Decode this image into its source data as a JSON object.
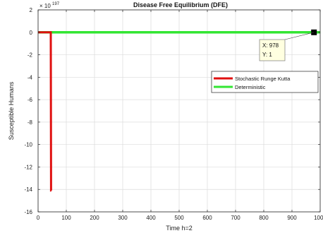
{
  "chart_data": {
    "type": "line",
    "title": "Disease Free Equilibrium (DFE)",
    "xlabel": "Time h=2",
    "ylabel": "Susceptible Humans",
    "exponent_label": "× 10",
    "exponent_power": "197",
    "xlim": [
      0,
      1000
    ],
    "ylim": [
      -16,
      2
    ],
    "xticks": [
      0,
      100,
      200,
      300,
      400,
      500,
      600,
      700,
      800,
      900,
      1000
    ],
    "yticks": [
      2,
      0,
      -2,
      -4,
      -6,
      -8,
      -10,
      -12,
      -14,
      -16
    ],
    "xtick_labels": [
      "0",
      "100",
      "200",
      "300",
      "400",
      "500",
      "600",
      "700",
      "800",
      "900",
      "1000"
    ],
    "ytick_labels": [
      "2",
      "0",
      "-2",
      "-4",
      "-6",
      "-8",
      "-10",
      "-12",
      "-14",
      "-16"
    ],
    "grid": true,
    "legend_position": "right",
    "series": [
      {
        "name": "Stochastic Runge Kutta",
        "color": "#e01010",
        "x": [
          0,
          45,
          46,
          47
        ],
        "y": [
          0,
          0,
          -14.1,
          -14.1
        ]
      },
      {
        "name": "Deterministic",
        "color": "#33e633",
        "x": [
          0,
          1000
        ],
        "y": [
          0,
          0
        ]
      }
    ],
    "data_tip": {
      "x_label": "X: 978",
      "y_label": "Y: 1",
      "x": 978,
      "y": 0
    }
  }
}
